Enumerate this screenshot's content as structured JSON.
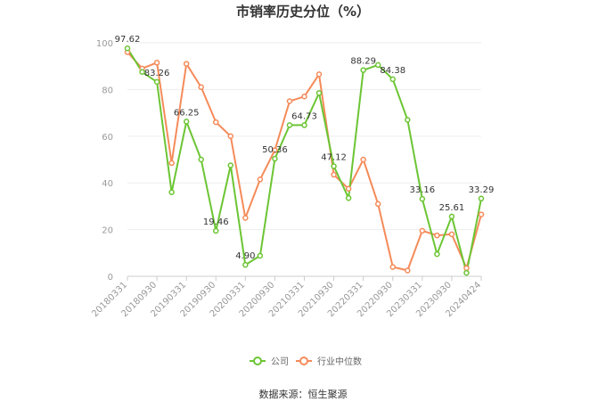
{
  "chart_data": {
    "type": "line",
    "title": "市销率历史分位（%）",
    "ylim": [
      0,
      100
    ],
    "yticks": [
      0,
      20,
      40,
      60,
      80,
      100
    ],
    "x_tick_labels": [
      "20180331",
      "20180930",
      "20190331",
      "20190930",
      "20200331",
      "20200930",
      "20210331",
      "20210930",
      "20220331",
      "20220930",
      "20230331",
      "20230930",
      "20240424"
    ],
    "grid": true,
    "legend_position": "bottom",
    "series": [
      {
        "name": "公司",
        "color": "#6cc534",
        "values": [
          97.62,
          87.5,
          83.26,
          36.0,
          66.25,
          50.0,
          19.46,
          47.5,
          4.9,
          8.8,
          50.36,
          64.73,
          64.73,
          78.5,
          47.12,
          33.5,
          88.29,
          90.5,
          84.38,
          67.0,
          33.16,
          9.5,
          25.61,
          1.5,
          33.29
        ],
        "labeled_points": [
          {
            "index": 0,
            "text": "97.62"
          },
          {
            "index": 2,
            "text": "83.26"
          },
          {
            "index": 4,
            "text": "66.25"
          },
          {
            "index": 6,
            "text": "19.46"
          },
          {
            "index": 8,
            "text": "4.90"
          },
          {
            "index": 10,
            "text": "50.36"
          },
          {
            "index": 12,
            "text": "64.73"
          },
          {
            "index": 14,
            "text": "47.12"
          },
          {
            "index": 16,
            "text": "88.29"
          },
          {
            "index": 18,
            "text": "84.38"
          },
          {
            "index": 20,
            "text": "33.16"
          },
          {
            "index": 22,
            "text": "25.61"
          },
          {
            "index": 24,
            "text": "33.29"
          }
        ]
      },
      {
        "name": "行业中位数",
        "color": "#f58b5a",
        "values": [
          96.0,
          89.0,
          91.5,
          48.5,
          91.0,
          81.0,
          66.0,
          60.0,
          25.0,
          41.5,
          54.0,
          75.0,
          77.0,
          86.5,
          43.5,
          37.5,
          50.0,
          31.0,
          4.0,
          2.5,
          19.5,
          17.5,
          18.0,
          3.5,
          26.5
        ]
      }
    ]
  },
  "source_text": "数据来源：恒生聚源"
}
